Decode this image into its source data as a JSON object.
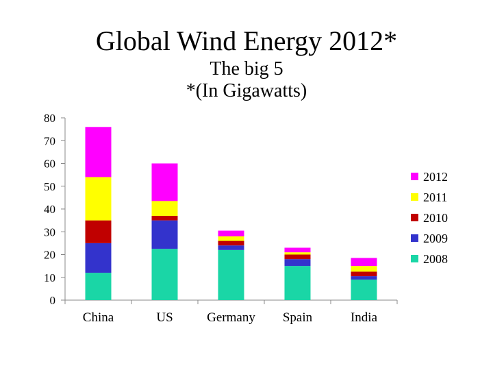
{
  "chart_data": {
    "type": "bar",
    "stacked": true,
    "title": "Global Wind Energy 2012*",
    "subtitle": "The big 5",
    "subtitle2": "*(In Gigawatts)",
    "categories": [
      "China",
      "US",
      "Germany",
      "Spain",
      "India"
    ],
    "ylim": [
      0,
      80
    ],
    "yticks": [
      0,
      10,
      20,
      30,
      40,
      50,
      60,
      70,
      80
    ],
    "grid": false,
    "legend_position": "right",
    "series": [
      {
        "name": "2008",
        "color": "#1ad6a6",
        "values": [
          12,
          22.5,
          22,
          15,
          9
        ]
      },
      {
        "name": "2009",
        "color": "#3333cc",
        "values": [
          13,
          12.5,
          2,
          3,
          1.5
        ]
      },
      {
        "name": "2010",
        "color": "#c00000",
        "values": [
          10,
          2,
          2,
          2,
          2
        ]
      },
      {
        "name": "2011",
        "color": "#ffff00",
        "values": [
          19,
          6.5,
          2,
          1,
          2.5
        ]
      },
      {
        "name": "2012",
        "color": "#ff00ff",
        "values": [
          22,
          16.5,
          2.5,
          2,
          3.5
        ]
      }
    ]
  }
}
